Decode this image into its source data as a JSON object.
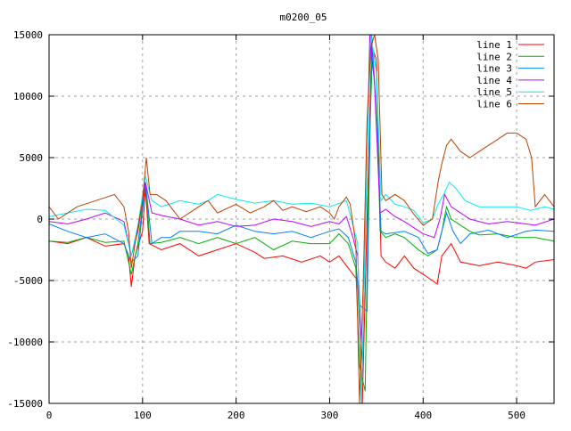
{
  "chart_data": {
    "type": "line",
    "title": "m0200_05",
    "xlabel": "",
    "ylabel": "",
    "xlim": [
      0,
      540
    ],
    "ylim": [
      -15000,
      15000
    ],
    "xticks": [
      0,
      100,
      200,
      300,
      400,
      500
    ],
    "yticks": [
      -15000,
      -10000,
      -5000,
      0,
      5000,
      10000,
      15000
    ],
    "grid": true,
    "legend_position": "top-right",
    "series": [
      {
        "name": "line 1",
        "color": "#ff0000",
        "points": [
          [
            0,
            -1800
          ],
          [
            20,
            -2000
          ],
          [
            40,
            -1500
          ],
          [
            60,
            -2200
          ],
          [
            80,
            -2000
          ],
          [
            85,
            -3000
          ],
          [
            88,
            -5500
          ],
          [
            92,
            -3000
          ],
          [
            100,
            -1000
          ],
          [
            103,
            2500
          ],
          [
            107,
            -2000
          ],
          [
            120,
            -2500
          ],
          [
            140,
            -2000
          ],
          [
            160,
            -3000
          ],
          [
            180,
            -2500
          ],
          [
            200,
            -2000
          ],
          [
            220,
            -2700
          ],
          [
            230,
            -3200
          ],
          [
            250,
            -3000
          ],
          [
            270,
            -3500
          ],
          [
            290,
            -3000
          ],
          [
            300,
            -3500
          ],
          [
            310,
            -3000
          ],
          [
            315,
            -3500
          ],
          [
            320,
            -4000
          ],
          [
            330,
            -5000
          ],
          [
            335,
            -15000
          ],
          [
            340,
            0
          ],
          [
            345,
            14000
          ],
          [
            350,
            13000
          ],
          [
            355,
            -3000
          ],
          [
            360,
            -3500
          ],
          [
            370,
            -4000
          ],
          [
            380,
            -3000
          ],
          [
            390,
            -4000
          ],
          [
            400,
            -4500
          ],
          [
            410,
            -5000
          ],
          [
            415,
            -5300
          ],
          [
            420,
            -3000
          ],
          [
            430,
            -2000
          ],
          [
            440,
            -3500
          ],
          [
            460,
            -3800
          ],
          [
            480,
            -3500
          ],
          [
            500,
            -3800
          ],
          [
            510,
            -4000
          ],
          [
            520,
            -3500
          ],
          [
            540,
            -3300
          ]
        ]
      },
      {
        "name": "line 2",
        "color": "#00b000",
        "points": [
          [
            0,
            -1800
          ],
          [
            20,
            -1900
          ],
          [
            40,
            -1500
          ],
          [
            60,
            -1900
          ],
          [
            80,
            -1800
          ],
          [
            88,
            -4500
          ],
          [
            95,
            -2000
          ],
          [
            103,
            3000
          ],
          [
            108,
            -2000
          ],
          [
            120,
            -1900
          ],
          [
            140,
            -1500
          ],
          [
            160,
            -2000
          ],
          [
            180,
            -1500
          ],
          [
            200,
            -2000
          ],
          [
            220,
            -1500
          ],
          [
            240,
            -2500
          ],
          [
            260,
            -1800
          ],
          [
            280,
            -2000
          ],
          [
            300,
            -2000
          ],
          [
            310,
            -1200
          ],
          [
            320,
            -2000
          ],
          [
            328,
            -4000
          ],
          [
            332,
            -12000
          ],
          [
            338,
            -14000
          ],
          [
            342,
            5000
          ],
          [
            346,
            14000
          ],
          [
            350,
            12000
          ],
          [
            354,
            -1000
          ],
          [
            360,
            -1500
          ],
          [
            370,
            -1200
          ],
          [
            380,
            -1500
          ],
          [
            395,
            -2500
          ],
          [
            405,
            -3000
          ],
          [
            415,
            -2500
          ],
          [
            420,
            -1000
          ],
          [
            425,
            1000
          ],
          [
            430,
            0
          ],
          [
            440,
            -500
          ],
          [
            450,
            -1000
          ],
          [
            460,
            -1300
          ],
          [
            480,
            -1200
          ],
          [
            500,
            -1500
          ],
          [
            520,
            -1500
          ],
          [
            540,
            -1800
          ]
        ]
      },
      {
        "name": "line 3",
        "color": "#0080ff",
        "points": [
          [
            0,
            -400
          ],
          [
            20,
            -1000
          ],
          [
            40,
            -1500
          ],
          [
            60,
            -1200
          ],
          [
            80,
            -2000
          ],
          [
            88,
            -3500
          ],
          [
            95,
            -3000
          ],
          [
            103,
            3000
          ],
          [
            110,
            -2000
          ],
          [
            120,
            -1500
          ],
          [
            130,
            -1500
          ],
          [
            140,
            -1000
          ],
          [
            160,
            -1000
          ],
          [
            180,
            -1200
          ],
          [
            200,
            -500
          ],
          [
            220,
            -1000
          ],
          [
            240,
            -1200
          ],
          [
            260,
            -1000
          ],
          [
            280,
            -1500
          ],
          [
            300,
            -1000
          ],
          [
            310,
            -800
          ],
          [
            320,
            -1500
          ],
          [
            328,
            -3500
          ],
          [
            332,
            -7000
          ],
          [
            340,
            -7500
          ],
          [
            345,
            15000
          ],
          [
            349,
            10000
          ],
          [
            355,
            -1000
          ],
          [
            360,
            -1200
          ],
          [
            380,
            -1000
          ],
          [
            395,
            -1500
          ],
          [
            405,
            -2800
          ],
          [
            415,
            -2500
          ],
          [
            420,
            -1000
          ],
          [
            425,
            500
          ],
          [
            432,
            -1000
          ],
          [
            440,
            -2000
          ],
          [
            450,
            -1200
          ],
          [
            470,
            -900
          ],
          [
            490,
            -1500
          ],
          [
            510,
            -1000
          ],
          [
            520,
            -900
          ],
          [
            540,
            -1000
          ]
        ]
      },
      {
        "name": "line 4",
        "color": "#c000ff",
        "points": [
          [
            0,
            -200
          ],
          [
            20,
            -400
          ],
          [
            40,
            0
          ],
          [
            60,
            500
          ],
          [
            80,
            -200
          ],
          [
            88,
            -3000
          ],
          [
            95,
            -1000
          ],
          [
            103,
            3000
          ],
          [
            110,
            500
          ],
          [
            120,
            300
          ],
          [
            140,
            0
          ],
          [
            160,
            -500
          ],
          [
            180,
            -200
          ],
          [
            200,
            -600
          ],
          [
            220,
            -500
          ],
          [
            240,
            0
          ],
          [
            260,
            -200
          ],
          [
            280,
            -600
          ],
          [
            300,
            -200
          ],
          [
            310,
            -400
          ],
          [
            318,
            200
          ],
          [
            325,
            -1500
          ],
          [
            330,
            -3000
          ],
          [
            335,
            -12000
          ],
          [
            343,
            15000
          ],
          [
            348,
            11000
          ],
          [
            354,
            500
          ],
          [
            360,
            800
          ],
          [
            370,
            200
          ],
          [
            380,
            -200
          ],
          [
            390,
            -700
          ],
          [
            400,
            -1200
          ],
          [
            412,
            -1500
          ],
          [
            418,
            0
          ],
          [
            423,
            2000
          ],
          [
            430,
            1000
          ],
          [
            440,
            500
          ],
          [
            450,
            0
          ],
          [
            470,
            -400
          ],
          [
            490,
            -200
          ],
          [
            510,
            -400
          ],
          [
            520,
            -500
          ],
          [
            540,
            0
          ]
        ]
      },
      {
        "name": "line 5",
        "color": "#00eeee",
        "points": [
          [
            0,
            200
          ],
          [
            20,
            500
          ],
          [
            40,
            800
          ],
          [
            60,
            700
          ],
          [
            80,
            -500
          ],
          [
            88,
            -3000
          ],
          [
            95,
            -500
          ],
          [
            103,
            3500
          ],
          [
            110,
            1500
          ],
          [
            120,
            1000
          ],
          [
            140,
            1500
          ],
          [
            160,
            1200
          ],
          [
            170,
            1500
          ],
          [
            180,
            2000
          ],
          [
            200,
            1600
          ],
          [
            220,
            1300
          ],
          [
            240,
            1500
          ],
          [
            260,
            1200
          ],
          [
            280,
            1300
          ],
          [
            300,
            1000
          ],
          [
            318,
            1500
          ],
          [
            325,
            -500
          ],
          [
            330,
            -2000
          ],
          [
            334,
            -15000
          ],
          [
            340,
            5000
          ],
          [
            344,
            15000
          ],
          [
            350,
            12000
          ],
          [
            355,
            1500
          ],
          [
            360,
            2000
          ],
          [
            370,
            1200
          ],
          [
            380,
            1000
          ],
          [
            390,
            700
          ],
          [
            400,
            -300
          ],
          [
            410,
            0
          ],
          [
            416,
            1200
          ],
          [
            422,
            2000
          ],
          [
            428,
            3000
          ],
          [
            435,
            2500
          ],
          [
            445,
            1500
          ],
          [
            460,
            1000
          ],
          [
            480,
            1000
          ],
          [
            500,
            1000
          ],
          [
            515,
            700
          ],
          [
            530,
            1000
          ],
          [
            540,
            800
          ]
        ]
      },
      {
        "name": "line 6",
        "color": "#c04000",
        "points": [
          [
            0,
            1000
          ],
          [
            10,
            0
          ],
          [
            20,
            500
          ],
          [
            30,
            1000
          ],
          [
            50,
            1500
          ],
          [
            70,
            2000
          ],
          [
            80,
            1000
          ],
          [
            85,
            -1000
          ],
          [
            88,
            -4000
          ],
          [
            92,
            -2000
          ],
          [
            100,
            1500
          ],
          [
            104,
            5000
          ],
          [
            108,
            2000
          ],
          [
            115,
            2000
          ],
          [
            125,
            1500
          ],
          [
            140,
            0
          ],
          [
            150,
            500
          ],
          [
            170,
            1500
          ],
          [
            180,
            500
          ],
          [
            200,
            1200
          ],
          [
            215,
            500
          ],
          [
            230,
            1000
          ],
          [
            240,
            1500
          ],
          [
            250,
            700
          ],
          [
            260,
            1000
          ],
          [
            275,
            600
          ],
          [
            290,
            1000
          ],
          [
            300,
            500
          ],
          [
            305,
            0
          ],
          [
            310,
            1000
          ],
          [
            318,
            1800
          ],
          [
            322,
            1200
          ],
          [
            328,
            -2000
          ],
          [
            332,
            -15000
          ],
          [
            336,
            -5000
          ],
          [
            340,
            8000
          ],
          [
            344,
            14000
          ],
          [
            348,
            15000
          ],
          [
            352,
            13000
          ],
          [
            356,
            2000
          ],
          [
            360,
            1500
          ],
          [
            370,
            2000
          ],
          [
            380,
            1500
          ],
          [
            390,
            400
          ],
          [
            400,
            -500
          ],
          [
            410,
            0
          ],
          [
            416,
            3000
          ],
          [
            420,
            4500
          ],
          [
            425,
            6000
          ],
          [
            430,
            6500
          ],
          [
            440,
            5500
          ],
          [
            450,
            5000
          ],
          [
            460,
            5500
          ],
          [
            470,
            6000
          ],
          [
            480,
            6500
          ],
          [
            490,
            7000
          ],
          [
            500,
            7000
          ],
          [
            510,
            6500
          ],
          [
            516,
            5000
          ],
          [
            520,
            1000
          ],
          [
            525,
            1500
          ],
          [
            530,
            2000
          ],
          [
            540,
            1000
          ]
        ]
      }
    ]
  }
}
